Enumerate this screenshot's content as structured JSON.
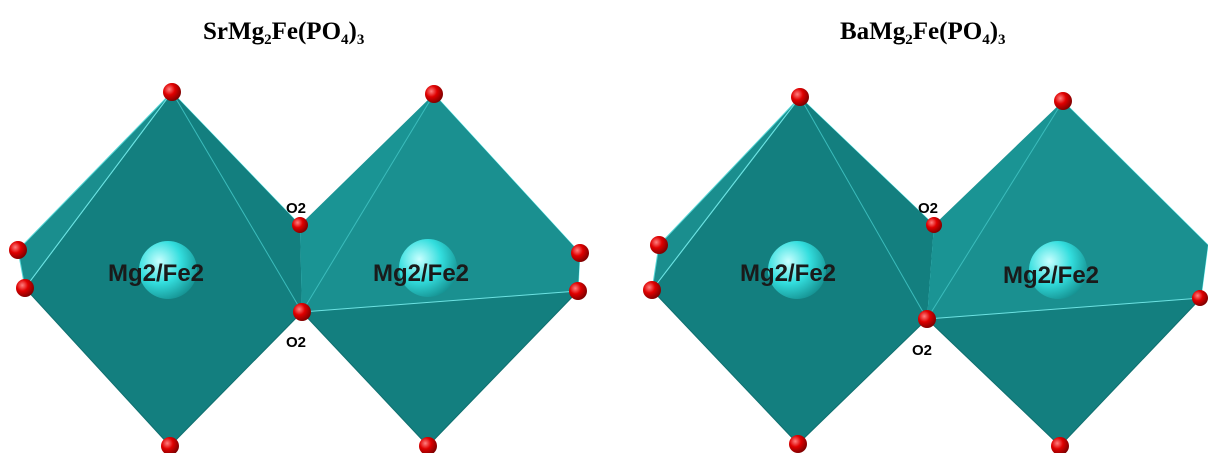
{
  "panels": [
    {
      "title": {
        "formula_a": "SrMg",
        "sub_a": "2",
        "formula_b": "Fe(PO",
        "sub_b": "4",
        "formula_c": ")",
        "sub_c": "3"
      },
      "octahedra": [
        {
          "label": "Mg2/Fe2"
        },
        {
          "label": "Mg2/Fe2"
        }
      ],
      "oxygen_labels": [
        "O2",
        "O2"
      ]
    },
    {
      "title": {
        "formula_a": "BaMg",
        "sub_a": "2",
        "formula_b": "Fe(PO",
        "sub_b": "4",
        "formula_c": ")",
        "sub_c": "3"
      },
      "octahedra": [
        {
          "label": "Mg2/Fe2"
        },
        {
          "label": "Mg2/Fe2"
        }
      ],
      "oxygen_labels": [
        "O2"
      ]
    }
  ],
  "colors": {
    "polyhedron_dark": "#137f7f",
    "polyhedron_mid": "#1a9090",
    "polyhedron_light_face": "#00e5e5",
    "oxygen_atom": "#e00000",
    "metal_atom": "#33dede"
  }
}
